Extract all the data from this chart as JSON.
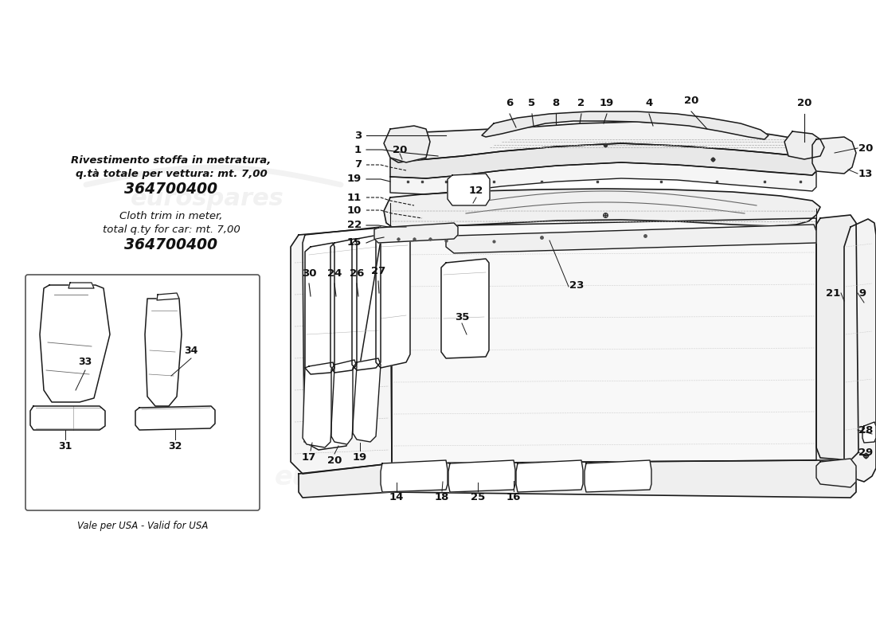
{
  "background_color": "#ffffff",
  "line_color": "#1a1a1a",
  "text_color": "#111111",
  "watermark": "eurospares",
  "fig_w": 11.0,
  "fig_h": 8.0,
  "dpi": 100,
  "title_italian": "Rivestimento stoffa in metratura,\nq.tà totale per vettura: mt. 7,00",
  "part_code": "364700400",
  "title_english": "Cloth trim in meter,\ntotal q.ty for car: mt. 7,00",
  "usa_label": "Vale per USA - Valid for USA"
}
